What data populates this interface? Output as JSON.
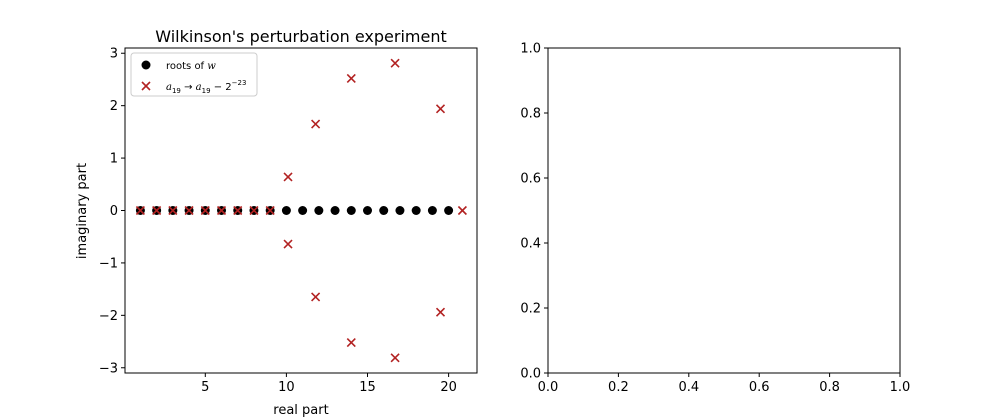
{
  "chart_data": [
    {
      "type": "scatter",
      "title": "Wilkinson's perturbation experiment",
      "xlabel": "real part",
      "ylabel": "imaginary part",
      "xlim": [
        0.05,
        21.75
      ],
      "ylim": [
        -3.1,
        3.1
      ],
      "xticks": [
        5,
        10,
        15,
        20
      ],
      "yticks": [
        -3,
        -2,
        -1,
        0,
        1,
        2,
        3
      ],
      "grid": false,
      "legend_position": "top-left",
      "series": [
        {
          "name": "roots of w",
          "marker": "circle",
          "color": "#000000",
          "x": [
            1,
            2,
            3,
            4,
            5,
            6,
            7,
            8,
            9,
            10,
            11,
            12,
            13,
            14,
            15,
            16,
            17,
            18,
            19,
            20
          ],
          "y": [
            0,
            0,
            0,
            0,
            0,
            0,
            0,
            0,
            0,
            0,
            0,
            0,
            0,
            0,
            0,
            0,
            0,
            0,
            0,
            0
          ]
        },
        {
          "name": "a19 → a19 − 2^−23",
          "marker": "x",
          "color": "#b22222",
          "x": [
            1,
            2,
            3,
            4,
            5,
            6,
            7,
            8,
            9,
            10.1,
            10.1,
            11.8,
            11.8,
            14.0,
            14.0,
            16.7,
            16.7,
            19.5,
            19.5,
            20.85
          ],
          "y": [
            0,
            0,
            0,
            0,
            0,
            0,
            0,
            0,
            0,
            0.64,
            -0.64,
            1.65,
            -1.65,
            2.52,
            -2.52,
            2.81,
            -2.81,
            1.94,
            -1.94,
            0
          ]
        }
      ]
    },
    {
      "type": "scatter",
      "title": "",
      "xlabel": "",
      "ylabel": "",
      "xlim": [
        0,
        1
      ],
      "ylim": [
        0,
        1
      ],
      "xticks": [
        "0.0",
        "0.2",
        "0.4",
        "0.6",
        "0.8",
        "1.0"
      ],
      "yticks": [
        "0.0",
        "0.2",
        "0.4",
        "0.6",
        "0.8",
        "1.0"
      ],
      "series": []
    }
  ]
}
